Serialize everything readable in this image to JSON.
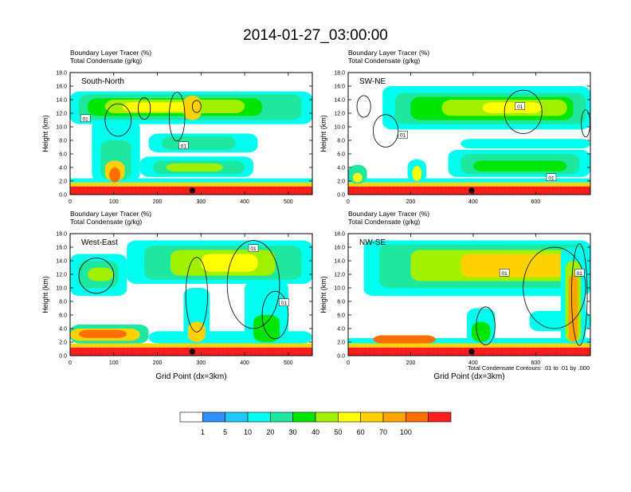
{
  "main_title": "2014-01-27_03:00:00",
  "panel_subtitle": {
    "line1": "Boundary Layer Tracer   (%)",
    "line2": "Total Condensate   (g/kg)"
  },
  "colors": {
    "palette": [
      "#ffffff",
      "#2f8fff",
      "#1ec8ff",
      "#00ffee",
      "#1ee8a0",
      "#00e600",
      "#a0f000",
      "#ffff00",
      "#ffd200",
      "#ffa500",
      "#ff6e00",
      "#ff1e1e"
    ],
    "contour_line": "#000000",
    "marker": "#000000"
  },
  "colorbar": {
    "labels": [
      "1",
      "5",
      "10",
      "20",
      "30",
      "40",
      "50",
      "60",
      "70",
      "100"
    ]
  },
  "contour_note": "Total Condensate Contours: .01 to .01 by .000",
  "chart_data": [
    {
      "type": "heatmap",
      "name": "South-North",
      "ylabel": "Height (km)",
      "xlabel": "",
      "xlim": [
        0,
        555
      ],
      "ylim": [
        0,
        18
      ],
      "xticks": [
        0,
        100,
        200,
        300,
        400,
        500
      ],
      "yticks": [
        0,
        2,
        4,
        6,
        8,
        10,
        12,
        14,
        16,
        18
      ],
      "ytick_labels": [
        "0.0",
        "2.0",
        "4.0",
        "6.0",
        "8.0",
        "10.0",
        "12.0",
        "14.0",
        "16.0",
        "18.0"
      ],
      "marker_x": 280,
      "contour_labels": [
        {
          "text": "01",
          "x": 35,
          "y": 11.2
        },
        {
          "text": "01",
          "x": 260,
          "y": 7.2
        }
      ],
      "features": [
        {
          "x0": 0,
          "x1": 555,
          "y0": 0,
          "y1": 1.2,
          "level": 10
        },
        {
          "x0": 0,
          "x1": 555,
          "y0": 1.2,
          "y1": 1.8,
          "level": 7
        },
        {
          "x0": 0,
          "x1": 555,
          "y0": 1.8,
          "y1": 2.4,
          "level": 2
        },
        {
          "x0": 0,
          "x1": 555,
          "y0": 10.4,
          "y1": 15.2,
          "level": 2
        },
        {
          "x0": 20,
          "x1": 530,
          "y0": 11.0,
          "y1": 14.8,
          "level": 3
        },
        {
          "x0": 40,
          "x1": 440,
          "y0": 11.6,
          "y1": 14.2,
          "level": 4
        },
        {
          "x0": 80,
          "x1": 400,
          "y0": 12.0,
          "y1": 14.0,
          "level": 5
        },
        {
          "x0": 120,
          "x1": 300,
          "y0": 12.2,
          "y1": 13.6,
          "level": 6
        },
        {
          "x0": 260,
          "x1": 300,
          "y0": 11.0,
          "y1": 14.6,
          "level": 7
        },
        {
          "x0": 160,
          "x1": 420,
          "y0": 2.6,
          "y1": 5.6,
          "level": 2
        },
        {
          "x0": 190,
          "x1": 400,
          "y0": 3.0,
          "y1": 5.0,
          "level": 3
        },
        {
          "x0": 220,
          "x1": 350,
          "y0": 3.4,
          "y1": 4.6,
          "level": 5
        },
        {
          "x0": 180,
          "x1": 430,
          "y0": 6.2,
          "y1": 9.0,
          "level": 2
        },
        {
          "x0": 210,
          "x1": 380,
          "y0": 6.6,
          "y1": 8.6,
          "level": 3
        },
        {
          "x0": 50,
          "x1": 160,
          "y0": 2.0,
          "y1": 11.0,
          "level": 2
        },
        {
          "x0": 70,
          "x1": 140,
          "y0": 2.2,
          "y1": 8.0,
          "level": 3
        },
        {
          "x0": 80,
          "x1": 125,
          "y0": 2.0,
          "y1": 5.0,
          "level": 7
        },
        {
          "x0": 90,
          "x1": 115,
          "y0": 1.8,
          "y1": 4.0,
          "level": 9
        }
      ],
      "contours": [
        {
          "cx": 245,
          "cy": 11.5,
          "rx": 18,
          "ry": 3.6
        },
        {
          "cx": 110,
          "cy": 11.0,
          "rx": 30,
          "ry": 2.4
        },
        {
          "cx": 290,
          "cy": 13.0,
          "rx": 10,
          "ry": 0.9
        },
        {
          "cx": 170,
          "cy": 12.7,
          "rx": 14,
          "ry": 1.6
        }
      ]
    },
    {
      "type": "heatmap",
      "name": "SW-NE",
      "ylabel": "Height (km)",
      "xlabel": "",
      "xlim": [
        0,
        775
      ],
      "ylim": [
        0,
        18
      ],
      "xticks": [
        0,
        200,
        400,
        600
      ],
      "yticks": [
        0,
        2,
        4,
        6,
        8,
        10,
        12,
        14,
        16,
        18
      ],
      "ytick_labels": [
        "0.0",
        "2.0",
        "4.0",
        "6.0",
        "8.0",
        "10.0",
        "12.0",
        "14.0",
        "16.0",
        "18.0"
      ],
      "marker_x": 395,
      "contour_labels": [
        {
          "text": "01",
          "x": 550,
          "y": 13.0
        },
        {
          "text": "01",
          "x": 175,
          "y": 8.8
        },
        {
          "text": "01",
          "x": 650,
          "y": 2.5
        }
      ],
      "features": [
        {
          "x0": 0,
          "x1": 775,
          "y0": 0,
          "y1": 1.2,
          "level": 10
        },
        {
          "x0": 0,
          "x1": 775,
          "y0": 1.2,
          "y1": 1.8,
          "level": 7
        },
        {
          "x0": 0,
          "x1": 775,
          "y0": 1.8,
          "y1": 2.4,
          "level": 2
        },
        {
          "x0": 110,
          "x1": 775,
          "y0": 9.6,
          "y1": 16.0,
          "level": 2
        },
        {
          "x0": 150,
          "x1": 760,
          "y0": 10.4,
          "y1": 15.0,
          "level": 3
        },
        {
          "x0": 200,
          "x1": 720,
          "y0": 11.0,
          "y1": 14.4,
          "level": 4
        },
        {
          "x0": 300,
          "x1": 700,
          "y0": 11.6,
          "y1": 14.0,
          "level": 5
        },
        {
          "x0": 430,
          "x1": 620,
          "y0": 12.0,
          "y1": 13.6,
          "level": 6
        },
        {
          "x0": 320,
          "x1": 775,
          "y0": 2.6,
          "y1": 6.6,
          "level": 2
        },
        {
          "x0": 360,
          "x1": 740,
          "y0": 3.0,
          "y1": 6.0,
          "level": 3
        },
        {
          "x0": 400,
          "x1": 700,
          "y0": 3.4,
          "y1": 5.0,
          "level": 4
        },
        {
          "x0": 360,
          "x1": 775,
          "y0": 6.8,
          "y1": 8.2,
          "level": 2
        },
        {
          "x0": 190,
          "x1": 250,
          "y0": 1.8,
          "y1": 5.2,
          "level": 2
        },
        {
          "x0": 205,
          "x1": 235,
          "y0": 2.0,
          "y1": 4.2,
          "level": 6
        },
        {
          "x0": 0,
          "x1": 60,
          "y0": 1.6,
          "y1": 4.4,
          "level": 3
        },
        {
          "x0": 15,
          "x1": 45,
          "y0": 1.8,
          "y1": 3.2,
          "level": 6
        }
      ],
      "contours": [
        {
          "cx": 120,
          "cy": 9.4,
          "rx": 40,
          "ry": 2.4
        },
        {
          "cx": 560,
          "cy": 12.2,
          "rx": 60,
          "ry": 3.2
        },
        {
          "cx": 50,
          "cy": 13.0,
          "rx": 22,
          "ry": 1.6
        },
        {
          "cx": 760,
          "cy": 10.5,
          "rx": 14,
          "ry": 2.0
        }
      ]
    },
    {
      "type": "heatmap",
      "name": "West-East",
      "ylabel": "Height (km)",
      "xlabel": "Grid Point (dx=3km)",
      "xlim": [
        0,
        555
      ],
      "ylim": [
        0,
        18
      ],
      "xticks": [
        0,
        100,
        200,
        300,
        400,
        500
      ],
      "yticks": [
        0,
        2,
        4,
        6,
        8,
        10,
        12,
        14,
        16,
        18
      ],
      "ytick_labels": [
        "0.0",
        "2.0",
        "4.0",
        "6.0",
        "8.0",
        "10.0",
        "12.0",
        "14.0",
        "16.0",
        "18.0"
      ],
      "marker_x": 280,
      "contour_labels": [
        {
          "text": "01",
          "x": 420,
          "y": 15.8
        },
        {
          "text": "01",
          "x": 490,
          "y": 7.8
        }
      ],
      "features": [
        {
          "x0": 0,
          "x1": 555,
          "y0": 0,
          "y1": 1.2,
          "level": 10
        },
        {
          "x0": 0,
          "x1": 555,
          "y0": 1.2,
          "y1": 1.8,
          "level": 7
        },
        {
          "x0": 0,
          "x1": 180,
          "y0": 1.8,
          "y1": 4.6,
          "level": 3
        },
        {
          "x0": 0,
          "x1": 160,
          "y0": 2.2,
          "y1": 4.0,
          "level": 7
        },
        {
          "x0": 20,
          "x1": 130,
          "y0": 2.6,
          "y1": 3.8,
          "level": 9
        },
        {
          "x0": 180,
          "x1": 555,
          "y0": 1.8,
          "y1": 3.6,
          "level": 2
        },
        {
          "x0": 0,
          "x1": 130,
          "y0": 8.8,
          "y1": 15.0,
          "level": 2
        },
        {
          "x0": 20,
          "x1": 110,
          "y0": 10.0,
          "y1": 14.0,
          "level": 3
        },
        {
          "x0": 40,
          "x1": 100,
          "y0": 11.0,
          "y1": 13.0,
          "level": 5
        },
        {
          "x0": 130,
          "x1": 555,
          "y0": 10.6,
          "y1": 17.0,
          "level": 2
        },
        {
          "x0": 170,
          "x1": 530,
          "y0": 11.2,
          "y1": 16.2,
          "level": 3
        },
        {
          "x0": 230,
          "x1": 470,
          "y0": 11.8,
          "y1": 15.6,
          "level": 5
        },
        {
          "x0": 300,
          "x1": 430,
          "y0": 12.4,
          "y1": 15.0,
          "level": 6
        },
        {
          "x0": 260,
          "x1": 320,
          "y0": 1.8,
          "y1": 10.0,
          "level": 2
        },
        {
          "x0": 270,
          "x1": 310,
          "y0": 2.0,
          "y1": 5.0,
          "level": 7
        },
        {
          "x0": 400,
          "x1": 500,
          "y0": 1.8,
          "y1": 11.0,
          "level": 2
        },
        {
          "x0": 420,
          "x1": 480,
          "y0": 2.0,
          "y1": 6.0,
          "level": 4
        }
      ],
      "contours": [
        {
          "cx": 60,
          "cy": 11.8,
          "rx": 40,
          "ry": 2.6
        },
        {
          "cx": 420,
          "cy": 10.5,
          "rx": 60,
          "ry": 6.5
        },
        {
          "cx": 290,
          "cy": 9.0,
          "rx": 25,
          "ry": 5.5
        },
        {
          "cx": 470,
          "cy": 6.0,
          "rx": 30,
          "ry": 3.5
        }
      ]
    },
    {
      "type": "heatmap",
      "name": "NW-SE",
      "ylabel": "Height (km)",
      "xlabel": "Grid Point (dx=3km)",
      "xlim": [
        0,
        775
      ],
      "ylim": [
        0,
        18
      ],
      "xticks": [
        0,
        200,
        400,
        600
      ],
      "yticks": [
        0,
        2,
        4,
        6,
        8,
        10,
        12,
        14,
        16,
        18
      ],
      "ytick_labels": [
        "0.0",
        "2.0",
        "4.0",
        "6.0",
        "8.0",
        "10.0",
        "12.0",
        "14.0",
        "16.0",
        "18.0"
      ],
      "marker_x": 395,
      "contour_labels": [
        {
          "text": "01",
          "x": 500,
          "y": 12.2
        },
        {
          "text": "01",
          "x": 740,
          "y": 12.2
        }
      ],
      "features": [
        {
          "x0": 0,
          "x1": 775,
          "y0": 0,
          "y1": 1.2,
          "level": 10
        },
        {
          "x0": 0,
          "x1": 775,
          "y0": 1.2,
          "y1": 1.8,
          "level": 7
        },
        {
          "x0": 0,
          "x1": 775,
          "y0": 1.8,
          "y1": 2.6,
          "level": 2
        },
        {
          "x0": 80,
          "x1": 280,
          "y0": 1.8,
          "y1": 3.0,
          "level": 9
        },
        {
          "x0": 50,
          "x1": 775,
          "y0": 8.8,
          "y1": 17.0,
          "level": 2
        },
        {
          "x0": 100,
          "x1": 760,
          "y0": 10.0,
          "y1": 16.4,
          "level": 3
        },
        {
          "x0": 200,
          "x1": 740,
          "y0": 11.0,
          "y1": 15.6,
          "level": 5
        },
        {
          "x0": 360,
          "x1": 720,
          "y0": 11.6,
          "y1": 15.0,
          "level": 7
        },
        {
          "x0": 380,
          "x1": 470,
          "y0": 1.8,
          "y1": 7.0,
          "level": 2
        },
        {
          "x0": 395,
          "x1": 455,
          "y0": 2.0,
          "y1": 5.0,
          "level": 4
        },
        {
          "x0": 580,
          "x1": 775,
          "y0": 3.6,
          "y1": 6.6,
          "level": 2
        },
        {
          "x0": 680,
          "x1": 760,
          "y0": 1.8,
          "y1": 16.0,
          "level": 2
        },
        {
          "x0": 695,
          "x1": 745,
          "y0": 2.0,
          "y1": 14.0,
          "level": 5
        },
        {
          "x0": 705,
          "x1": 735,
          "y0": 2.0,
          "y1": 12.0,
          "level": 8
        }
      ],
      "contours": [
        {
          "cx": 660,
          "cy": 10.0,
          "rx": 100,
          "ry": 6.0
        },
        {
          "cx": 440,
          "cy": 4.4,
          "rx": 30,
          "ry": 2.8
        },
        {
          "cx": 740,
          "cy": 9.0,
          "rx": 25,
          "ry": 7.5
        }
      ]
    }
  ]
}
